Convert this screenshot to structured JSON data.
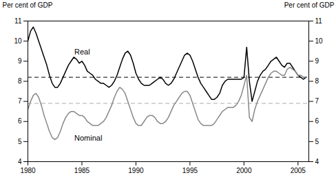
{
  "chart_data": {
    "type": "line",
    "ylabel": "Per cent of GDP",
    "y2label": "Per cent of GDP",
    "xlim": [
      1980,
      2006
    ],
    "ylim": [
      4,
      11
    ],
    "yticks": [
      4,
      5,
      6,
      7,
      8,
      9,
      10,
      11
    ],
    "y2lim": [
      4,
      11
    ],
    "y2ticks": [
      4,
      5,
      6,
      7,
      8,
      9,
      10,
      11
    ],
    "xticks": [
      1980,
      1985,
      1990,
      1995,
      2000,
      2005
    ],
    "grid": false,
    "x": [
      1980.0,
      1980.25,
      1980.5,
      1980.75,
      1981.0,
      1981.25,
      1981.5,
      1981.75,
      1982.0,
      1982.25,
      1982.5,
      1982.75,
      1983.0,
      1983.25,
      1983.5,
      1983.75,
      1984.0,
      1984.25,
      1984.5,
      1984.75,
      1985.0,
      1985.25,
      1985.5,
      1985.75,
      1986.0,
      1986.25,
      1986.5,
      1986.75,
      1987.0,
      1987.25,
      1987.5,
      1987.75,
      1988.0,
      1988.25,
      1988.5,
      1988.75,
      1989.0,
      1989.25,
      1989.5,
      1989.75,
      1990.0,
      1990.25,
      1990.5,
      1990.75,
      1991.0,
      1991.25,
      1991.5,
      1991.75,
      1992.0,
      1992.25,
      1992.5,
      1992.75,
      1993.0,
      1993.25,
      1993.5,
      1993.75,
      1994.0,
      1994.25,
      1994.5,
      1994.75,
      1995.0,
      1995.25,
      1995.5,
      1995.75,
      1996.0,
      1996.25,
      1996.5,
      1996.75,
      1997.0,
      1997.25,
      1997.5,
      1997.75,
      1998.0,
      1998.25,
      1998.5,
      1998.75,
      1999.0,
      1999.25,
      1999.5,
      1999.75,
      2000.0,
      2000.25,
      2000.5,
      2000.75,
      2001.0,
      2001.25,
      2001.5,
      2001.75,
      2002.0,
      2002.25,
      2002.5,
      2002.75,
      2003.0,
      2003.25,
      2003.5,
      2003.75,
      2004.0,
      2004.25,
      2004.5,
      2004.75,
      2005.0,
      2005.25,
      2005.5,
      2005.75
    ],
    "series": [
      {
        "name": "Real",
        "color": "#000000",
        "values": [
          10.0,
          10.5,
          10.7,
          10.4,
          10.0,
          9.6,
          9.2,
          8.8,
          8.3,
          7.9,
          7.7,
          7.7,
          7.9,
          8.2,
          8.5,
          8.8,
          9.0,
          9.2,
          9.1,
          8.9,
          9.0,
          8.8,
          8.5,
          8.4,
          8.3,
          8.1,
          8.0,
          7.9,
          7.9,
          7.8,
          7.7,
          7.8,
          8.0,
          8.3,
          8.7,
          9.1,
          9.4,
          9.5,
          9.3,
          8.9,
          8.4,
          8.1,
          7.9,
          7.8,
          7.8,
          7.8,
          7.9,
          8.0,
          8.1,
          8.2,
          8.1,
          7.9,
          7.8,
          7.9,
          8.1,
          8.4,
          8.7,
          9.0,
          9.3,
          9.4,
          9.3,
          9.0,
          8.6,
          8.2,
          7.9,
          7.7,
          7.5,
          7.3,
          7.1,
          7.1,
          7.2,
          7.4,
          7.8,
          8.0,
          8.1,
          8.1,
          8.1,
          8.1,
          8.1,
          8.1,
          8.2,
          9.7,
          8.0,
          7.0,
          7.5,
          8.0,
          8.3,
          8.5,
          8.6,
          8.8,
          9.0,
          9.1,
          9.2,
          9.0,
          8.8,
          8.7,
          8.9,
          8.9,
          8.7,
          8.5,
          8.3,
          8.2,
          8.1,
          8.2
        ]
      },
      {
        "name": "Nominal",
        "color": "#888888",
        "values": [
          6.6,
          7.0,
          7.3,
          7.4,
          7.2,
          6.8,
          6.3,
          5.9,
          5.5,
          5.2,
          5.1,
          5.2,
          5.5,
          5.9,
          6.2,
          6.4,
          6.5,
          6.5,
          6.4,
          6.3,
          6.3,
          6.2,
          6.0,
          5.9,
          5.8,
          5.8,
          5.8,
          5.9,
          6.0,
          6.2,
          6.5,
          6.8,
          7.2,
          7.5,
          7.7,
          7.6,
          7.4,
          7.0,
          6.6,
          6.2,
          5.9,
          5.8,
          5.8,
          6.0,
          6.2,
          6.3,
          6.3,
          6.2,
          6.0,
          5.9,
          5.9,
          6.0,
          6.2,
          6.5,
          6.8,
          7.0,
          7.2,
          7.4,
          7.5,
          7.5,
          7.3,
          6.9,
          6.5,
          6.1,
          5.9,
          5.8,
          5.8,
          5.8,
          5.8,
          5.9,
          6.1,
          6.3,
          6.5,
          6.6,
          6.7,
          6.7,
          6.7,
          6.8,
          7.0,
          7.3,
          7.8,
          8.3,
          6.2,
          6.0,
          6.6,
          7.0,
          7.3,
          7.6,
          7.9,
          8.2,
          8.4,
          8.5,
          8.5,
          8.4,
          8.3,
          8.3,
          8.6,
          8.7,
          8.6,
          8.5,
          8.3,
          8.3,
          8.2,
          8.2
        ]
      }
    ],
    "reference_lines": [
      {
        "y": 8.2,
        "color": "#000000",
        "line_style": "dashed"
      },
      {
        "y": 6.9,
        "color": "#aaaaaa",
        "line_style": "dashed"
      }
    ],
    "annotations": [
      {
        "text": "Real",
        "x": 1984.3,
        "y": 9.35
      },
      {
        "text": "Nominal",
        "x": 1984.3,
        "y": 5.05
      }
    ]
  }
}
